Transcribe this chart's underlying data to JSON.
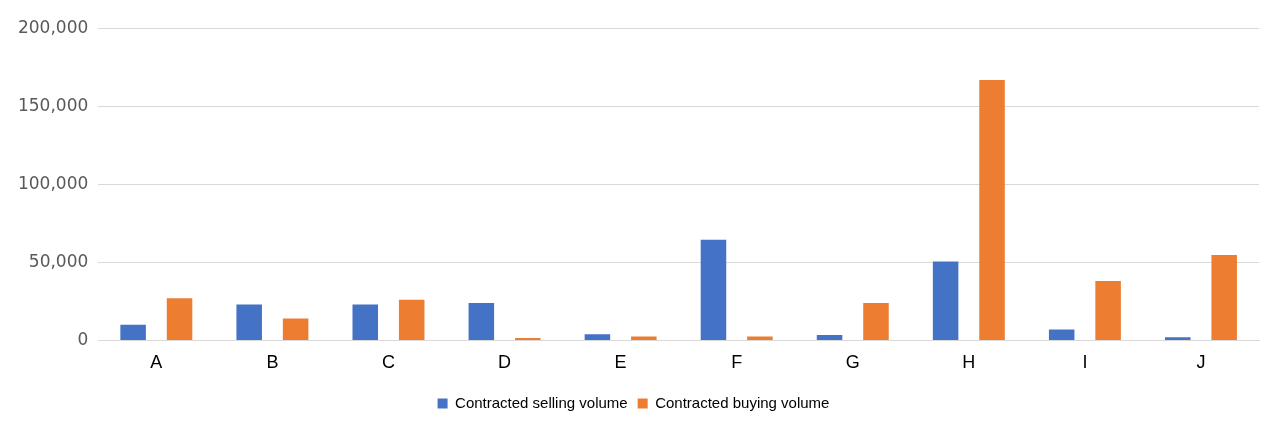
{
  "chart_data": {
    "type": "bar",
    "categories": [
      "A",
      "B",
      "C",
      "D",
      "E",
      "F",
      "G",
      "H",
      "I",
      "J"
    ],
    "series": [
      {
        "name": "Contracted selling volume",
        "color": "#4472c4",
        "values": [
          10000,
          23000,
          23000,
          24000,
          4000,
          64500,
          3500,
          50500,
          7000,
          2000
        ]
      },
      {
        "name": "Contracted buying volume",
        "color": "#ed7d31",
        "values": [
          27000,
          14000,
          26000,
          1500,
          2500,
          2500,
          24000,
          166800,
          38000,
          54700
        ]
      }
    ],
    "ylim": [
      0,
      200000
    ],
    "yticks": [
      {
        "value": 0,
        "label": "0"
      },
      {
        "value": 50000,
        "label": "50,000"
      },
      {
        "value": 100000,
        "label": "100,000"
      },
      {
        "value": 150000,
        "label": "150,000"
      },
      {
        "value": 200000,
        "label": "200,000"
      }
    ],
    "grid": "y",
    "legend": "bottom"
  }
}
